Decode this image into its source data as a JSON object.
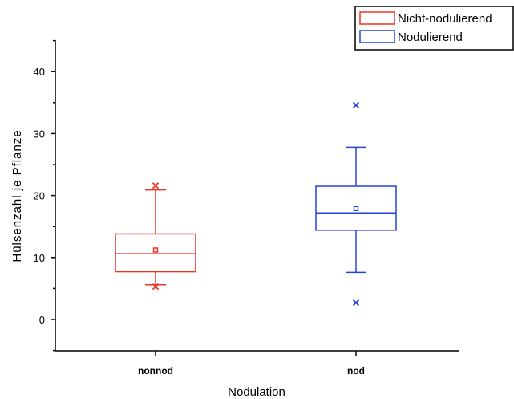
{
  "chart_data": {
    "type": "box",
    "categories": [
      "nonnod",
      "nod"
    ],
    "xlabel": "Nodulation",
    "ylabel": "Hülsenzahl je Pflanze",
    "ylim": [
      -5,
      45
    ],
    "yticks": [
      0,
      10,
      20,
      30,
      40
    ],
    "legend_position": "top-right",
    "series": [
      {
        "name": "Nicht-nodulierend",
        "category": "nonnod",
        "color": "#ee3322",
        "q1": 7.7,
        "median": 10.6,
        "q3": 13.8,
        "whisker_low": 5.6,
        "whisker_high": 20.9,
        "mean": 11.2,
        "outliers": [
          5.3,
          21.6
        ]
      },
      {
        "name": "Nodulierend",
        "category": "nod",
        "color": "#2244dd",
        "q1": 14.4,
        "median": 17.2,
        "q3": 21.5,
        "whisker_low": 7.6,
        "whisker_high": 27.8,
        "mean": 17.9,
        "outliers": [
          2.7,
          34.6
        ]
      }
    ]
  }
}
